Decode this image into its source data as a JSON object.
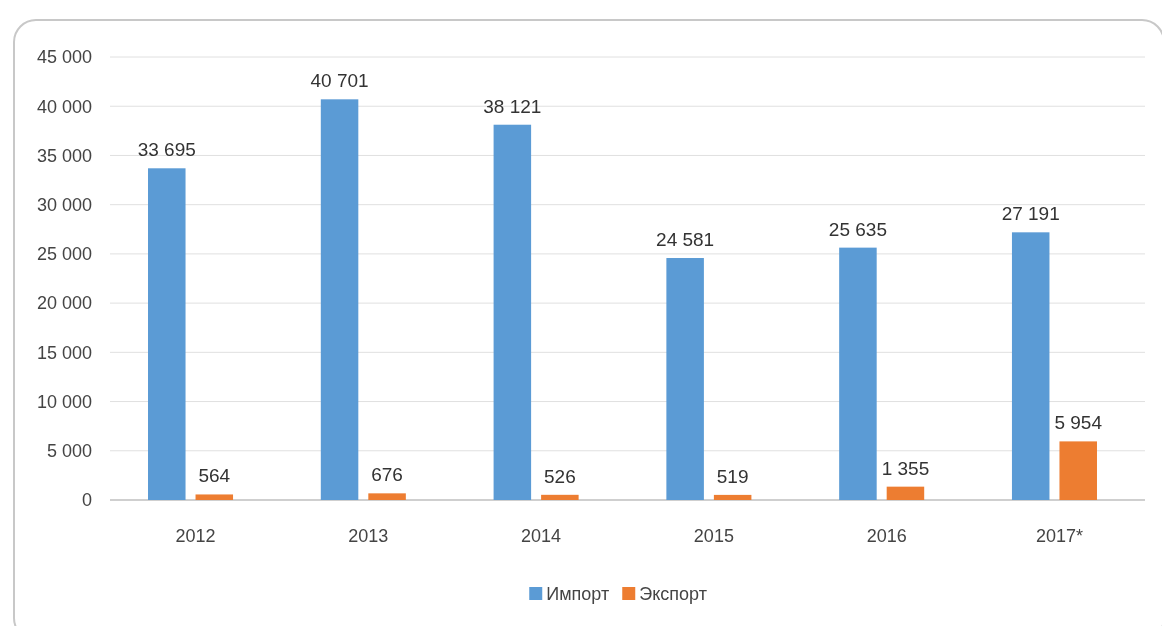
{
  "chart_data": {
    "type": "bar",
    "categories": [
      "2012",
      "2013",
      "2014",
      "2015",
      "2016",
      "2017*"
    ],
    "series": [
      {
        "name": "Импорт",
        "color": "#5b9bd5",
        "values": [
          33695,
          40701,
          38121,
          24581,
          25635,
          27191
        ],
        "value_labels": [
          "33 695",
          "40 701",
          "38 121",
          "24 581",
          "25 635",
          "27 191"
        ]
      },
      {
        "name": "Экспорт",
        "color": "#ed7d31",
        "values": [
          564,
          676,
          526,
          519,
          1355,
          5954
        ],
        "value_labels": [
          "564",
          "676",
          "526",
          "519",
          "1 355",
          "5 954"
        ]
      }
    ],
    "ylim": [
      0,
      45000
    ],
    "yticks": [
      {
        "value": 0,
        "label": "0"
      },
      {
        "value": 5000,
        "label": "5 000"
      },
      {
        "value": 10000,
        "label": "10 000"
      },
      {
        "value": 15000,
        "label": "15 000"
      },
      {
        "value": 20000,
        "label": "20 000"
      },
      {
        "value": 25000,
        "label": "25 000"
      },
      {
        "value": 30000,
        "label": "30 000"
      },
      {
        "value": 35000,
        "label": "35 000"
      },
      {
        "value": 40000,
        "label": "40 000"
      },
      {
        "value": 45000,
        "label": "45 000"
      }
    ],
    "grid": "y",
    "legend": "bottom"
  }
}
